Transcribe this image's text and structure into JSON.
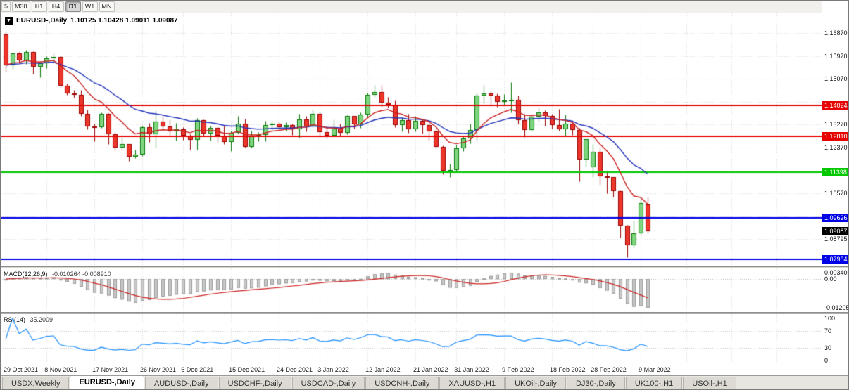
{
  "icons": {
    "collapse": "▼"
  },
  "toolbar": {
    "timeframes": [
      "5",
      "M30",
      "H1",
      "H4",
      "D1",
      "W1",
      "MN"
    ],
    "active_timeframe": "D1"
  },
  "chart": {
    "symbol_label": "EURUSD-,Daily",
    "ohlc_text": "1.10125 1.10428 1.09011 1.09087"
  },
  "chart_data": {
    "type": "candlestick",
    "title": "EURUSD-,Daily",
    "timeframe": "Daily",
    "ohlc_current": {
      "open": 1.10125,
      "high": 1.10428,
      "low": 1.09011,
      "close": 1.09087
    },
    "y_range": [
      1.0771,
      1.1764
    ],
    "grid_prices": [
      1.1687,
      1.1597,
      1.1507,
      1.1417,
      1.1327,
      1.1237,
      1.1147,
      1.1057,
      1.0967,
      1.08795
    ],
    "axis_labels": [
      "1.16870",
      "1.15970",
      "1.15070",
      "1.13270",
      "1.12370",
      "1.10570",
      "1.08795"
    ],
    "levels": [
      {
        "price": 1.14024,
        "label": "1.14024",
        "color": "#e60000",
        "width": 2
      },
      {
        "price": 1.1281,
        "label": "1.12810",
        "color": "#e60000",
        "width": 2
      },
      {
        "price": 1.11398,
        "label": "1.11398",
        "color": "#00c800",
        "width": 2
      },
      {
        "price": 1.09626,
        "label": "1.09626",
        "color": "#0000e6",
        "width": 2
      },
      {
        "price": 1.07984,
        "label": "1.07984",
        "color": "#0000e6",
        "width": 2
      }
    ],
    "current_price": {
      "price": 1.09087,
      "label": "1.09087",
      "color": "#000000"
    },
    "moving_averages": [
      {
        "period": 21,
        "color": "#2233bb"
      },
      {
        "period": 9,
        "color": "#cc2222"
      }
    ],
    "candle_colors": {
      "up_fill": "#7fd57f",
      "up_border": "#0a7a0a",
      "down_fill": "#ee372b",
      "down_border": "#9c0000"
    },
    "date_labels": [
      {
        "index": 0,
        "text": "29 Oct 2021"
      },
      {
        "index": 6,
        "text": "8 Nov 2021"
      },
      {
        "index": 13,
        "text": "17 Nov 2021"
      },
      {
        "index": 20,
        "text": "26 Nov 2021"
      },
      {
        "index": 26,
        "text": "6 Dec 2021"
      },
      {
        "index": 33,
        "text": "15 Dec 2021"
      },
      {
        "index": 40,
        "text": "24 Dec 2021"
      },
      {
        "index": 46,
        "text": "3 Jan 2022"
      },
      {
        "index": 53,
        "text": "12 Jan 2022"
      },
      {
        "index": 60,
        "text": "21 Jan 2022"
      },
      {
        "index": 66,
        "text": "31 Jan 2022"
      },
      {
        "index": 73,
        "text": "9 Feb 2022"
      },
      {
        "index": 80,
        "text": "18 Feb 2022"
      },
      {
        "index": 86,
        "text": "28 Feb 2022"
      },
      {
        "index": 93,
        "text": "9 Mar 2022"
      }
    ],
    "candles": [
      [
        1.168,
        1.1692,
        1.1535,
        1.156
      ],
      [
        1.156,
        1.1609,
        1.1545,
        1.1606
      ],
      [
        1.1606,
        1.1612,
        1.1572,
        1.158
      ],
      [
        1.158,
        1.162,
        1.1565,
        1.1611
      ],
      [
        1.1611,
        1.1616,
        1.1527,
        1.1555
      ],
      [
        1.1555,
        1.1573,
        1.1513,
        1.1567
      ],
      [
        1.1567,
        1.1596,
        1.155,
        1.1588
      ],
      [
        1.1588,
        1.1608,
        1.157,
        1.1593
      ],
      [
        1.1593,
        1.1598,
        1.1475,
        1.148
      ],
      [
        1.148,
        1.1488,
        1.1443,
        1.145
      ],
      [
        1.145,
        1.1463,
        1.1433,
        1.1445
      ],
      [
        1.1445,
        1.1464,
        1.136,
        1.137
      ],
      [
        1.137,
        1.1386,
        1.1309,
        1.132
      ],
      [
        1.132,
        1.1332,
        1.1263,
        1.1318
      ],
      [
        1.1318,
        1.1374,
        1.1314,
        1.137
      ],
      [
        1.137,
        1.1372,
        1.125,
        1.129
      ],
      [
        1.129,
        1.1297,
        1.1226,
        1.1238
      ],
      [
        1.1238,
        1.1275,
        1.1226,
        1.125
      ],
      [
        1.125,
        1.1252,
        1.1186,
        1.12
      ],
      [
        1.12,
        1.123,
        1.1195,
        1.121
      ],
      [
        1.121,
        1.1323,
        1.1205,
        1.1317
      ],
      [
        1.1317,
        1.1335,
        1.1258,
        1.129
      ],
      [
        1.129,
        1.1383,
        1.1236,
        1.1339
      ],
      [
        1.1339,
        1.136,
        1.1304,
        1.132
      ],
      [
        1.132,
        1.1348,
        1.1288,
        1.13
      ],
      [
        1.13,
        1.1334,
        1.1266,
        1.131
      ],
      [
        1.131,
        1.1317,
        1.1267,
        1.1285
      ],
      [
        1.1285,
        1.129,
        1.1228,
        1.1268
      ],
      [
        1.1268,
        1.1354,
        1.1228,
        1.1345
      ],
      [
        1.1345,
        1.1348,
        1.128,
        1.1293
      ],
      [
        1.1293,
        1.1324,
        1.1264,
        1.1315
      ],
      [
        1.1315,
        1.1319,
        1.126,
        1.1285
      ],
      [
        1.1285,
        1.1322,
        1.1252,
        1.126
      ],
      [
        1.126,
        1.1304,
        1.1222,
        1.1295
      ],
      [
        1.1295,
        1.136,
        1.1292,
        1.133
      ],
      [
        1.133,
        1.135,
        1.1236,
        1.124
      ],
      [
        1.124,
        1.1304,
        1.1237,
        1.128
      ],
      [
        1.128,
        1.1298,
        1.1262,
        1.1287
      ],
      [
        1.1287,
        1.1343,
        1.1262,
        1.1325
      ],
      [
        1.1325,
        1.1342,
        1.1301,
        1.133
      ],
      [
        1.133,
        1.1338,
        1.1308,
        1.1318
      ],
      [
        1.1318,
        1.1336,
        1.1303,
        1.1325
      ],
      [
        1.1325,
        1.1331,
        1.1288,
        1.131
      ],
      [
        1.131,
        1.1369,
        1.1276,
        1.1348
      ],
      [
        1.1348,
        1.136,
        1.13,
        1.132
      ],
      [
        1.132,
        1.1386,
        1.1316,
        1.137
      ],
      [
        1.137,
        1.1379,
        1.1279,
        1.1297
      ],
      [
        1.1297,
        1.1323,
        1.1272,
        1.1285
      ],
      [
        1.1285,
        1.1347,
        1.128,
        1.1313
      ],
      [
        1.1313,
        1.1332,
        1.1285,
        1.1295
      ],
      [
        1.1295,
        1.1365,
        1.129,
        1.136
      ],
      [
        1.136,
        1.1362,
        1.1313,
        1.1327
      ],
      [
        1.1327,
        1.1374,
        1.1315,
        1.1367
      ],
      [
        1.1367,
        1.1453,
        1.1355,
        1.1444
      ],
      [
        1.1444,
        1.1482,
        1.1435,
        1.1455
      ],
      [
        1.1455,
        1.1483,
        1.1398,
        1.1415
      ],
      [
        1.1415,
        1.1436,
        1.1394,
        1.1405
      ],
      [
        1.1405,
        1.1423,
        1.1318,
        1.1325
      ],
      [
        1.1325,
        1.1357,
        1.1301,
        1.1345
      ],
      [
        1.1345,
        1.1369,
        1.1295,
        1.131
      ],
      [
        1.131,
        1.136,
        1.13,
        1.1343
      ],
      [
        1.1343,
        1.1349,
        1.1291,
        1.1325
      ],
      [
        1.1325,
        1.133,
        1.1264,
        1.13
      ],
      [
        1.13,
        1.131,
        1.1235,
        1.124
      ],
      [
        1.124,
        1.1245,
        1.1131,
        1.1145
      ],
      [
        1.1145,
        1.1173,
        1.1121,
        1.115
      ],
      [
        1.115,
        1.1248,
        1.114,
        1.1235
      ],
      [
        1.1235,
        1.128,
        1.1222,
        1.1273
      ],
      [
        1.1273,
        1.133,
        1.1255,
        1.1305
      ],
      [
        1.1305,
        1.1452,
        1.1266,
        1.144
      ],
      [
        1.144,
        1.1484,
        1.1411,
        1.145
      ],
      [
        1.145,
        1.1459,
        1.14,
        1.1442
      ],
      [
        1.1442,
        1.1449,
        1.1396,
        1.1417
      ],
      [
        1.1417,
        1.1448,
        1.1403,
        1.1423
      ],
      [
        1.1423,
        1.1495,
        1.1375,
        1.1425
      ],
      [
        1.1425,
        1.144,
        1.133,
        1.1345
      ],
      [
        1.1345,
        1.1369,
        1.1279,
        1.1305
      ],
      [
        1.1305,
        1.1368,
        1.13,
        1.1358
      ],
      [
        1.1358,
        1.1395,
        1.134,
        1.1375
      ],
      [
        1.1375,
        1.1383,
        1.1323,
        1.136
      ],
      [
        1.136,
        1.1369,
        1.1312,
        1.1325
      ],
      [
        1.1325,
        1.139,
        1.1303,
        1.131
      ],
      [
        1.131,
        1.1367,
        1.1285,
        1.133
      ],
      [
        1.133,
        1.1342,
        1.1287,
        1.1305
      ],
      [
        1.1305,
        1.1315,
        1.1106,
        1.119
      ],
      [
        1.119,
        1.1274,
        1.1163,
        1.127
      ],
      [
        1.116,
        1.125,
        1.112,
        1.122
      ],
      [
        1.122,
        1.1235,
        1.109,
        1.1125
      ],
      [
        1.1125,
        1.1145,
        1.1058,
        1.112
      ],
      [
        1.112,
        1.1122,
        1.1045,
        1.1065
      ],
      [
        1.1065,
        1.107,
        1.0885,
        1.093
      ],
      [
        1.093,
        1.0935,
        1.0806,
        1.0855
      ],
      [
        1.0855,
        1.095,
        1.0845,
        1.09
      ],
      [
        1.09,
        1.1035,
        1.0895,
        1.102
      ],
      [
        1.10125,
        1.10428,
        1.09011,
        1.09087
      ]
    ],
    "indicators": {
      "macd": {
        "name": "MACD(12,26,9)",
        "values": "-0.010264 -0.008910",
        "fast": 12,
        "slow": 26,
        "signal": 9,
        "axis_labels": [
          "0.0034080",
          "0.00",
          "-0.0120500"
        ],
        "histogram_color": "#c9c9c9",
        "signal_color": "#cc2222"
      },
      "rsi": {
        "name": "RSI(14)",
        "value": "35.2009",
        "period": 14,
        "axis_labels": [
          "100",
          "70",
          "30",
          "0"
        ],
        "levels": [
          70,
          30
        ],
        "color": "#1e90ff"
      }
    }
  },
  "tabs": [
    {
      "label": "USDX,Weekly",
      "active": false
    },
    {
      "label": "EURUSD-,Daily",
      "active": true
    },
    {
      "label": "AUDUSD-,Daily",
      "active": false
    },
    {
      "label": "USDCHF-,Daily",
      "active": false
    },
    {
      "label": "USDCAD-,Daily",
      "active": false
    },
    {
      "label": "USDCNH-,Daily",
      "active": false
    },
    {
      "label": "XAUUSD-,H1",
      "active": false
    },
    {
      "label": "UKOil-,Daily",
      "active": false
    },
    {
      "label": "DJ30-,Daily",
      "active": false
    },
    {
      "label": "UK100-,H1",
      "active": false
    },
    {
      "label": "USOil-,H1",
      "active": false
    }
  ]
}
